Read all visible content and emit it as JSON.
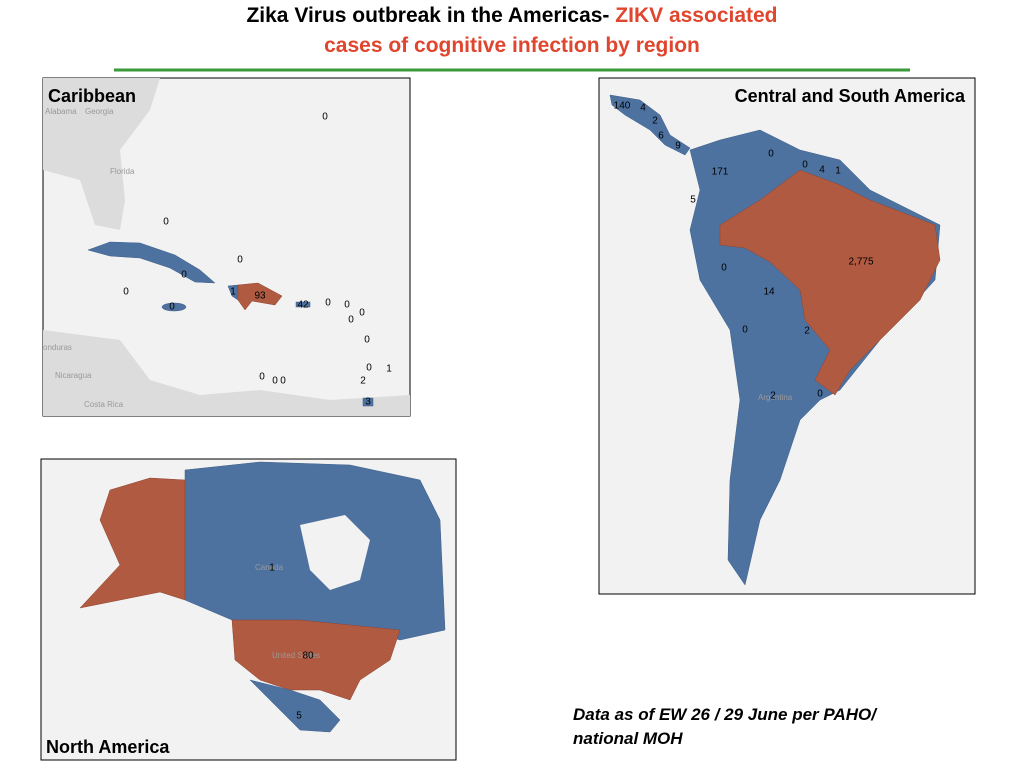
{
  "title": {
    "line1_black": "Zika Virus outbreak in the Americas-",
    "line1_red": "ZIKV associated",
    "line2_red": "cases of cognitive infection by region"
  },
  "panels": [
    {
      "name": "Caribbean",
      "basemap_labels": [
        "Alabama",
        "Georgia",
        "Florida",
        "onduras",
        "Nicaragua",
        "Costa Rica"
      ],
      "counts": [
        0,
        0,
        0,
        0,
        0,
        1,
        93,
        42,
        0,
        0,
        0,
        0,
        0,
        0,
        0,
        1,
        0,
        0,
        0,
        2,
        3
      ]
    },
    {
      "name": "Central and South America",
      "basemap_labels": [
        "Argentina"
      ],
      "counts": [
        140,
        4,
        2,
        6,
        9,
        0,
        0,
        4,
        1,
        171,
        5,
        {
          "value": 2775,
          "label": "2,775"
        },
        0,
        14,
        0,
        2,
        2,
        0
      ]
    },
    {
      "name": "North America",
      "basemap_labels": [
        "Canada",
        "United States"
      ],
      "counts": [
        1,
        80,
        5
      ]
    }
  ],
  "note": [
    "Data as of EW 26 / 29 June per PAHO/",
    "national MOH"
  ]
}
